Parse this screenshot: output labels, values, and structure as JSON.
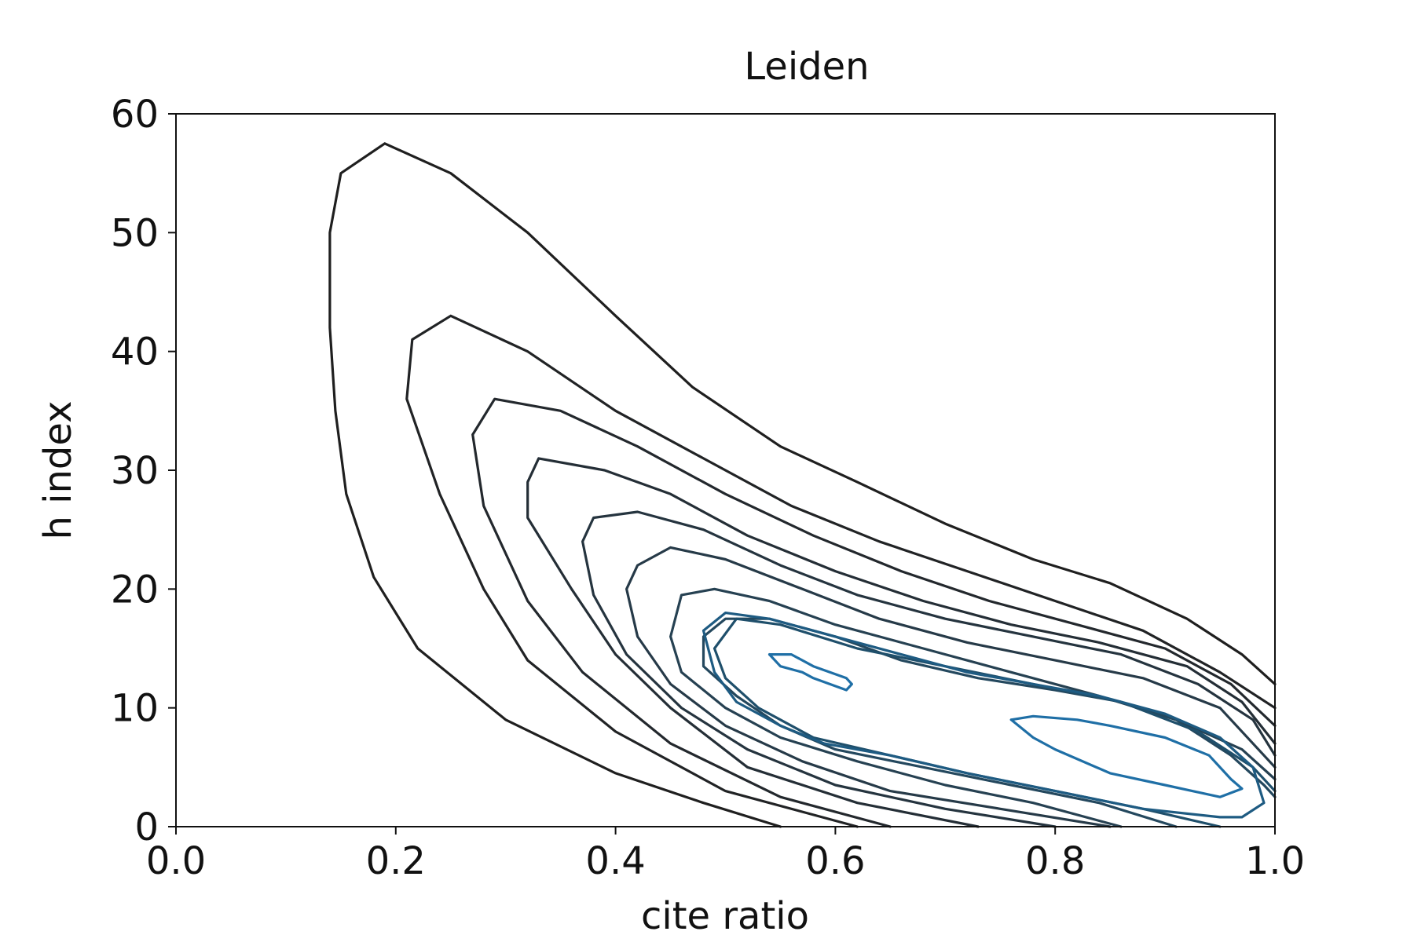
{
  "chart_data": {
    "type": "contour",
    "title": "Leiden",
    "xlabel": "cite ratio",
    "ylabel": "h index",
    "xlim": [
      0.0,
      1.0
    ],
    "ylim": [
      0,
      60
    ],
    "xticks": [
      "0.0",
      "0.2",
      "0.4",
      "0.6",
      "0.8",
      "1.0"
    ],
    "yticks": [
      "0",
      "10",
      "20",
      "30",
      "40",
      "50",
      "60"
    ],
    "grid": false,
    "levels": [
      {
        "color": "#1f1f1f",
        "paths": [
          [
            [
              0.55,
              0
            ],
            [
              0.48,
              2
            ],
            [
              0.4,
              4.5
            ],
            [
              0.3,
              9
            ],
            [
              0.22,
              15
            ],
            [
              0.18,
              21
            ],
            [
              0.155,
              28
            ],
            [
              0.145,
              35
            ],
            [
              0.14,
              42
            ],
            [
              0.14,
              50
            ],
            [
              0.15,
              55
            ],
            [
              0.19,
              57.5
            ],
            [
              0.25,
              55
            ],
            [
              0.32,
              50
            ],
            [
              0.4,
              43
            ],
            [
              0.47,
              37
            ],
            [
              0.55,
              32
            ],
            [
              0.62,
              29
            ],
            [
              0.7,
              25.5
            ],
            [
              0.78,
              22.5
            ],
            [
              0.85,
              20.5
            ],
            [
              0.92,
              17.5
            ],
            [
              0.97,
              14.5
            ],
            [
              1.0,
              12
            ]
          ]
        ]
      },
      {
        "color": "#212325",
        "paths": [
          [
            [
              0.62,
              0
            ],
            [
              0.5,
              3
            ],
            [
              0.4,
              8
            ],
            [
              0.32,
              14
            ],
            [
              0.28,
              20
            ],
            [
              0.24,
              28
            ],
            [
              0.21,
              36
            ],
            [
              0.215,
              41
            ],
            [
              0.25,
              43
            ],
            [
              0.32,
              40
            ],
            [
              0.4,
              35
            ],
            [
              0.48,
              31
            ],
            [
              0.56,
              27
            ],
            [
              0.64,
              24
            ],
            [
              0.72,
              21.5
            ],
            [
              0.8,
              19
            ],
            [
              0.88,
              16.5
            ],
            [
              0.95,
              13
            ],
            [
              1.0,
              10
            ]
          ]
        ]
      },
      {
        "color": "#23282d",
        "paths": [
          [
            [
              0.65,
              0
            ],
            [
              0.55,
              2.5
            ],
            [
              0.45,
              7
            ],
            [
              0.37,
              13
            ],
            [
              0.32,
              19
            ],
            [
              0.28,
              27
            ],
            [
              0.27,
              33
            ],
            [
              0.29,
              36
            ],
            [
              0.35,
              35
            ],
            [
              0.42,
              32
            ],
            [
              0.5,
              28
            ],
            [
              0.58,
              24.5
            ],
            [
              0.66,
              21.5
            ],
            [
              0.74,
              19
            ],
            [
              0.82,
              17
            ],
            [
              0.9,
              15
            ],
            [
              0.96,
              12
            ],
            [
              1.0,
              8.5
            ]
          ]
        ]
      },
      {
        "color": "#242e36",
        "paths": [
          [
            [
              0.73,
              0
            ],
            [
              0.62,
              2
            ],
            [
              0.52,
              5
            ],
            [
              0.45,
              10
            ],
            [
              0.4,
              14.5
            ],
            [
              0.36,
              20
            ],
            [
              0.32,
              26
            ],
            [
              0.32,
              29
            ],
            [
              0.33,
              31
            ],
            [
              0.39,
              30
            ],
            [
              0.45,
              28
            ],
            [
              0.52,
              24.5
            ],
            [
              0.6,
              21.5
            ],
            [
              0.68,
              19
            ],
            [
              0.76,
              17
            ],
            [
              0.84,
              15.5
            ],
            [
              0.92,
              13.5
            ],
            [
              0.97,
              10.5
            ],
            [
              1.0,
              7
            ]
          ]
        ]
      },
      {
        "color": "#25343f",
        "paths": [
          [
            [
              0.8,
              0
            ],
            [
              0.7,
              1.5
            ],
            [
              0.6,
              3.5
            ],
            [
              0.52,
              6.5
            ],
            [
              0.46,
              10
            ],
            [
              0.41,
              14.5
            ],
            [
              0.38,
              19.5
            ],
            [
              0.37,
              24
            ],
            [
              0.38,
              26
            ],
            [
              0.42,
              26.5
            ],
            [
              0.48,
              25
            ],
            [
              0.55,
              22
            ],
            [
              0.62,
              19.5
            ],
            [
              0.7,
              17.5
            ],
            [
              0.78,
              16
            ],
            [
              0.86,
              14.5
            ],
            [
              0.93,
              12
            ],
            [
              0.98,
              9
            ],
            [
              1.0,
              6
            ]
          ]
        ]
      },
      {
        "color": "#263a48",
        "paths": [
          [
            [
              0.85,
              0
            ],
            [
              0.75,
              1.5
            ],
            [
              0.65,
              3
            ],
            [
              0.57,
              5.5
            ],
            [
              0.5,
              8.5
            ],
            [
              0.45,
              12
            ],
            [
              0.42,
              16
            ],
            [
              0.41,
              20
            ],
            [
              0.42,
              22
            ],
            [
              0.45,
              23.5
            ],
            [
              0.5,
              22.5
            ],
            [
              0.57,
              20
            ],
            [
              0.64,
              17.5
            ],
            [
              0.72,
              15.5
            ],
            [
              0.8,
              14
            ],
            [
              0.88,
              12.5
            ],
            [
              0.95,
              10
            ],
            [
              1.0,
              5
            ]
          ]
        ]
      },
      {
        "color": "#264152",
        "paths": [
          [
            [
              0.86,
              0
            ],
            [
              0.78,
              2
            ],
            [
              0.7,
              3.5
            ],
            [
              0.62,
              5.5
            ],
            [
              0.55,
              7.5
            ],
            [
              0.5,
              10
            ],
            [
              0.46,
              13
            ],
            [
              0.45,
              16
            ],
            [
              0.46,
              19.5
            ],
            [
              0.49,
              20
            ],
            [
              0.54,
              19
            ],
            [
              0.6,
              17
            ],
            [
              0.68,
              15
            ],
            [
              0.76,
              13
            ],
            [
              0.84,
              11
            ],
            [
              0.91,
              9
            ],
            [
              0.97,
              6.5
            ],
            [
              1.0,
              4
            ]
          ]
        ]
      },
      {
        "color": "#24485e",
        "paths": [
          [
            [
              0.91,
              0
            ],
            [
              0.84,
              2
            ],
            [
              0.76,
              3.5
            ],
            [
              0.68,
              5
            ],
            [
              0.6,
              6.5
            ],
            [
              0.55,
              8.5
            ],
            [
              0.51,
              11
            ],
            [
              0.48,
              13.5
            ],
            [
              0.48,
              16
            ],
            [
              0.5,
              17.5
            ],
            [
              0.54,
              17.5
            ],
            [
              0.6,
              16
            ],
            [
              0.66,
              14
            ],
            [
              0.73,
              12.5
            ],
            [
              0.8,
              11.5
            ],
            [
              0.86,
              10.5
            ],
            [
              0.91,
              9
            ],
            [
              0.96,
              6
            ],
            [
              0.99,
              3.5
            ],
            [
              1.0,
              2.5
            ]
          ]
        ]
      },
      {
        "color": "#1f4f6b",
        "paths": [
          [
            [
              0.95,
              0
            ],
            [
              0.88,
              1.5
            ],
            [
              0.8,
              3
            ],
            [
              0.72,
              4.5
            ],
            [
              0.65,
              6
            ],
            [
              0.58,
              7.5
            ],
            [
              0.53,
              10
            ],
            [
              0.5,
              12.5
            ],
            [
              0.49,
              15
            ],
            [
              0.51,
              17.5
            ],
            [
              0.55,
              17
            ],
            [
              0.62,
              15
            ],
            [
              0.7,
              13.5
            ],
            [
              0.78,
              12
            ],
            [
              0.86,
              10.5
            ],
            [
              0.93,
              8
            ],
            [
              0.98,
              5
            ],
            [
              1.0,
              3
            ]
          ]
        ]
      },
      {
        "color": "#1e5b82",
        "paths": [
          [
            [
              0.95,
              0.8
            ],
            [
              0.88,
              1.5
            ],
            [
              0.8,
              3
            ],
            [
              0.72,
              4.5
            ],
            [
              0.65,
              6
            ],
            [
              0.59,
              7
            ],
            [
              0.55,
              8.5
            ],
            [
              0.51,
              10.5
            ],
            [
              0.49,
              13
            ],
            [
              0.48,
              16.5
            ],
            [
              0.5,
              18
            ],
            [
              0.54,
              17.5
            ],
            [
              0.6,
              16
            ],
            [
              0.66,
              14.5
            ],
            [
              0.72,
              13
            ],
            [
              0.78,
              12
            ],
            [
              0.84,
              11
            ],
            [
              0.9,
              9.5
            ],
            [
              0.95,
              7.5
            ],
            [
              0.98,
              5
            ],
            [
              0.99,
              2
            ],
            [
              0.97,
              0.8
            ],
            [
              0.95,
              0.8
            ]
          ]
        ]
      },
      {
        "color": "#1f6fa6",
        "paths": [
          [
            [
              0.54,
              14.5
            ],
            [
              0.56,
              14.5
            ],
            [
              0.58,
              13.5
            ],
            [
              0.61,
              12.5
            ],
            [
              0.615,
              12.0
            ],
            [
              0.61,
              11.5
            ],
            [
              0.58,
              12.5
            ],
            [
              0.57,
              13
            ],
            [
              0.55,
              13.5
            ],
            [
              0.54,
              14.5
            ]
          ],
          [
            [
              0.76,
              9
            ],
            [
              0.78,
              9.3
            ],
            [
              0.82,
              9
            ],
            [
              0.85,
              8.5
            ],
            [
              0.9,
              7.5
            ],
            [
              0.94,
              6
            ],
            [
              0.96,
              4
            ],
            [
              0.97,
              3.2
            ],
            [
              0.95,
              2.5
            ],
            [
              0.9,
              3.5
            ],
            [
              0.85,
              4.5
            ],
            [
              0.8,
              6.5
            ],
            [
              0.78,
              7.5
            ],
            [
              0.76,
              9
            ]
          ]
        ]
      }
    ]
  }
}
